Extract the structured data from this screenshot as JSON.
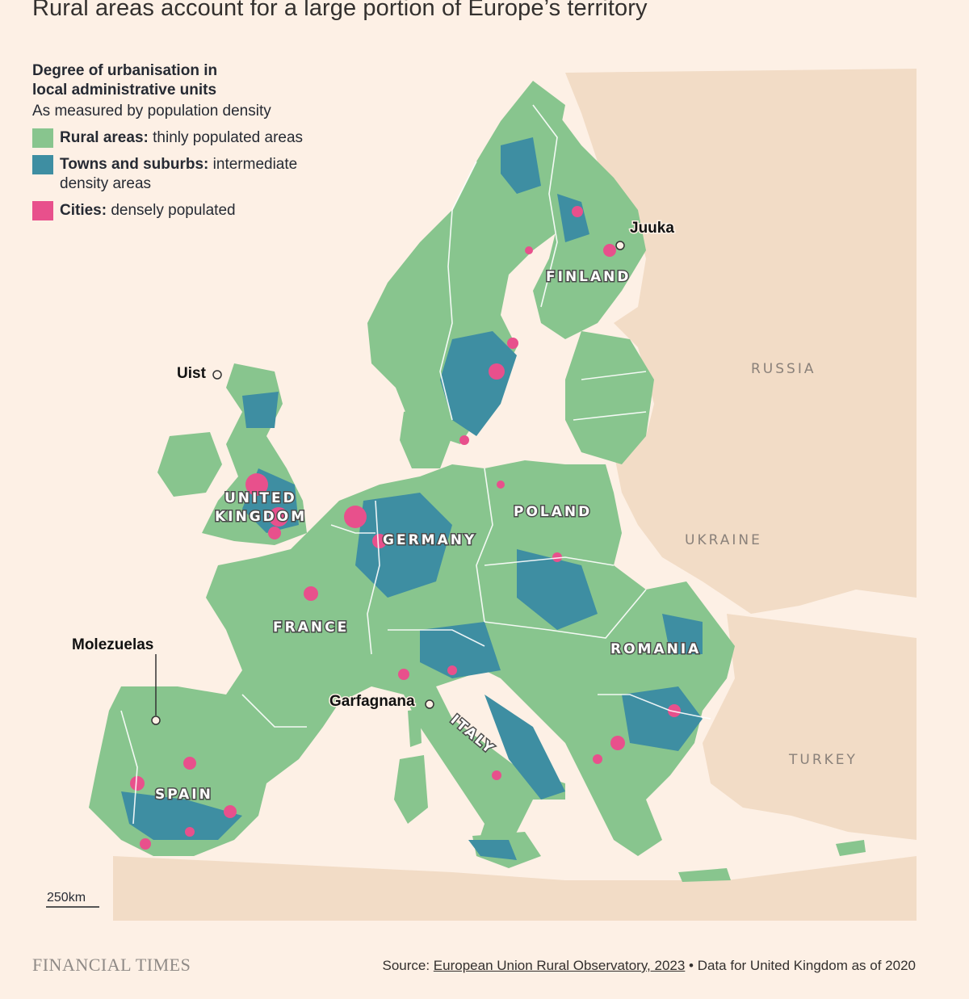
{
  "title": "Rural areas account for a large portion of Europe’s territory",
  "legend": {
    "heading_line1": "Degree of urbanisation in",
    "heading_line2": "local administrative units",
    "subtitle": "As measured by population density",
    "items": [
      {
        "bold": "Rural areas:",
        "text": " thinly populated areas",
        "color": "#88c58e"
      },
      {
        "bold": "Towns and suburbs:",
        "text": " intermediate density areas",
        "color": "#3e8ea2"
      },
      {
        "bold": "Cities:",
        "text": " densely populated",
        "color": "#e8508c"
      }
    ]
  },
  "colors": {
    "background": "#fdf0e5",
    "land_non_eu": "#f2dcc6",
    "rural": "#88c58e",
    "towns": "#3e8ea2",
    "cities": "#e8508c"
  },
  "country_labels": {
    "finland": "FINLAND",
    "uk_line1": "UNITED",
    "uk_line2": "KINGDOM",
    "germany": "GERMANY",
    "poland": "POLAND",
    "france": "FRANCE",
    "romania": "ROMANIA",
    "italy": "ITALY",
    "spain": "SPAIN"
  },
  "background_labels": {
    "russia": "RUSSIA",
    "ukraine": "UKRAINE",
    "turkey": "TURKEY"
  },
  "places": {
    "juuka": "Juuka",
    "uist": "Uist",
    "molezuelas": "Molezuelas",
    "garfagnana": "Garfagnana"
  },
  "scale_bar": "250km",
  "footer": {
    "brand": "FINANCIAL TIMES",
    "source_prefix": "Source: ",
    "source_link": "European Union Rural Observatory, 2023",
    "source_suffix": " • Data for United Kingdom as of 2020"
  }
}
